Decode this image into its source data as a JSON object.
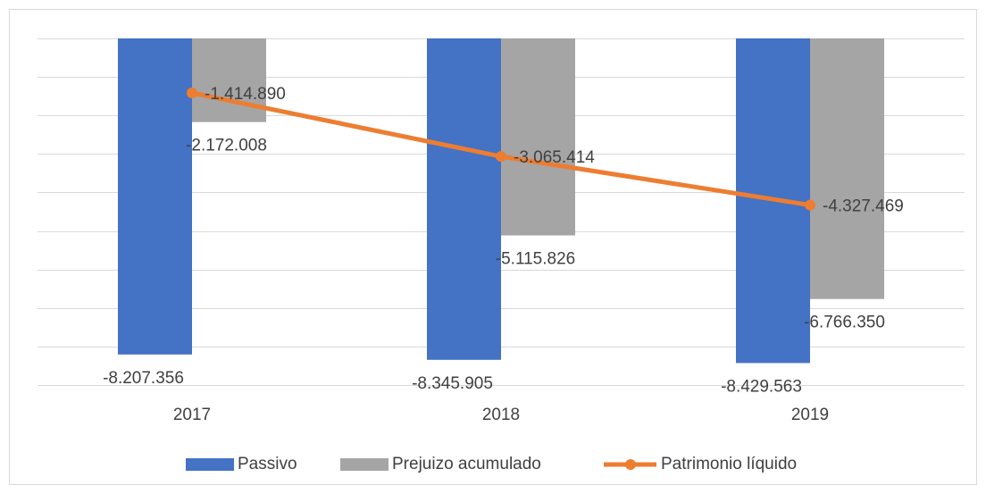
{
  "chart_data": {
    "type": "bar-line",
    "categories": [
      "2017",
      "2018",
      "2019"
    ],
    "series": [
      {
        "name": "Passivo",
        "type": "bar",
        "color": "#4472c4",
        "values": [
          -8207356,
          -8345905,
          -8429563
        ],
        "value_labels": [
          "-8.207.356",
          "-8.345.905",
          "-8.429.563"
        ]
      },
      {
        "name": "Prejuizo acumulado",
        "type": "bar",
        "color": "#a5a5a5",
        "values": [
          -2172008,
          -5115826,
          -6766350
        ],
        "value_labels": [
          "-2.172.008",
          "-5.115.826",
          "-6.766.350"
        ]
      },
      {
        "name": "Patrimonio líquido",
        "type": "line",
        "color": "#ed7d31",
        "values": [
          -1414890,
          -3065414,
          -4327469
        ],
        "value_labels": [
          "-1.414.890",
          "-3.065.414",
          "-4.327.469"
        ]
      }
    ],
    "ylim": [
      -9000000,
      0
    ],
    "yticks": [
      -9000000,
      -8000000,
      -7000000,
      -6000000,
      -5000000,
      -4000000,
      -3000000,
      -2000000,
      -1000000,
      0
    ],
    "grid": true,
    "legend": "bottom"
  }
}
